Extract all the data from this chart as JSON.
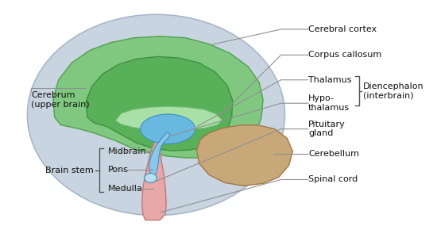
{
  "background_color": "#ffffff",
  "labels": {
    "cerebral_cortex": "Cerebral cortex",
    "cerebrum": "Cerebrum\n(upper brain)",
    "corpus_callosum": "Corpus callosum",
    "thalamus": "Thalamus",
    "hypothalamus": "Hypo-\nthalamus",
    "diencephalon": "Diencephalon\n(interbrain)",
    "midbrain": "Midbrain",
    "pons": "Pons",
    "medulla": "Medulla",
    "brain_stem": "Brain stem",
    "pituitary_gland": "Pituitary\ngland",
    "cerebellum": "Cerebellum",
    "spinal_cord": "Spinal cord"
  },
  "colors": {
    "outer_skull": "#c8d4e0",
    "outer_skull_edge": "#a8b8c8",
    "cerebrum_outer": "#80c880",
    "cerebrum_outer_edge": "#50a050",
    "cerebrum_inner": "#58b058",
    "cerebrum_inner_edge": "#409040",
    "corpus_callosum": "#a8e0a8",
    "corpus_callosum_edge": "#70b870",
    "thalamus": "#68b8e0",
    "thalamus_edge": "#4090c0",
    "hypothalamus": "#88c8e8",
    "hypothalamus_edge": "#4090c0",
    "brainstem": "#e8a8a8",
    "brainstem_edge": "#c07878",
    "cerebellum": "#c8a878",
    "cerebellum_edge": "#a07848",
    "line_color": "#909090",
    "text_color": "#111111",
    "bracket_color": "#555555"
  },
  "font_size": 8.0
}
